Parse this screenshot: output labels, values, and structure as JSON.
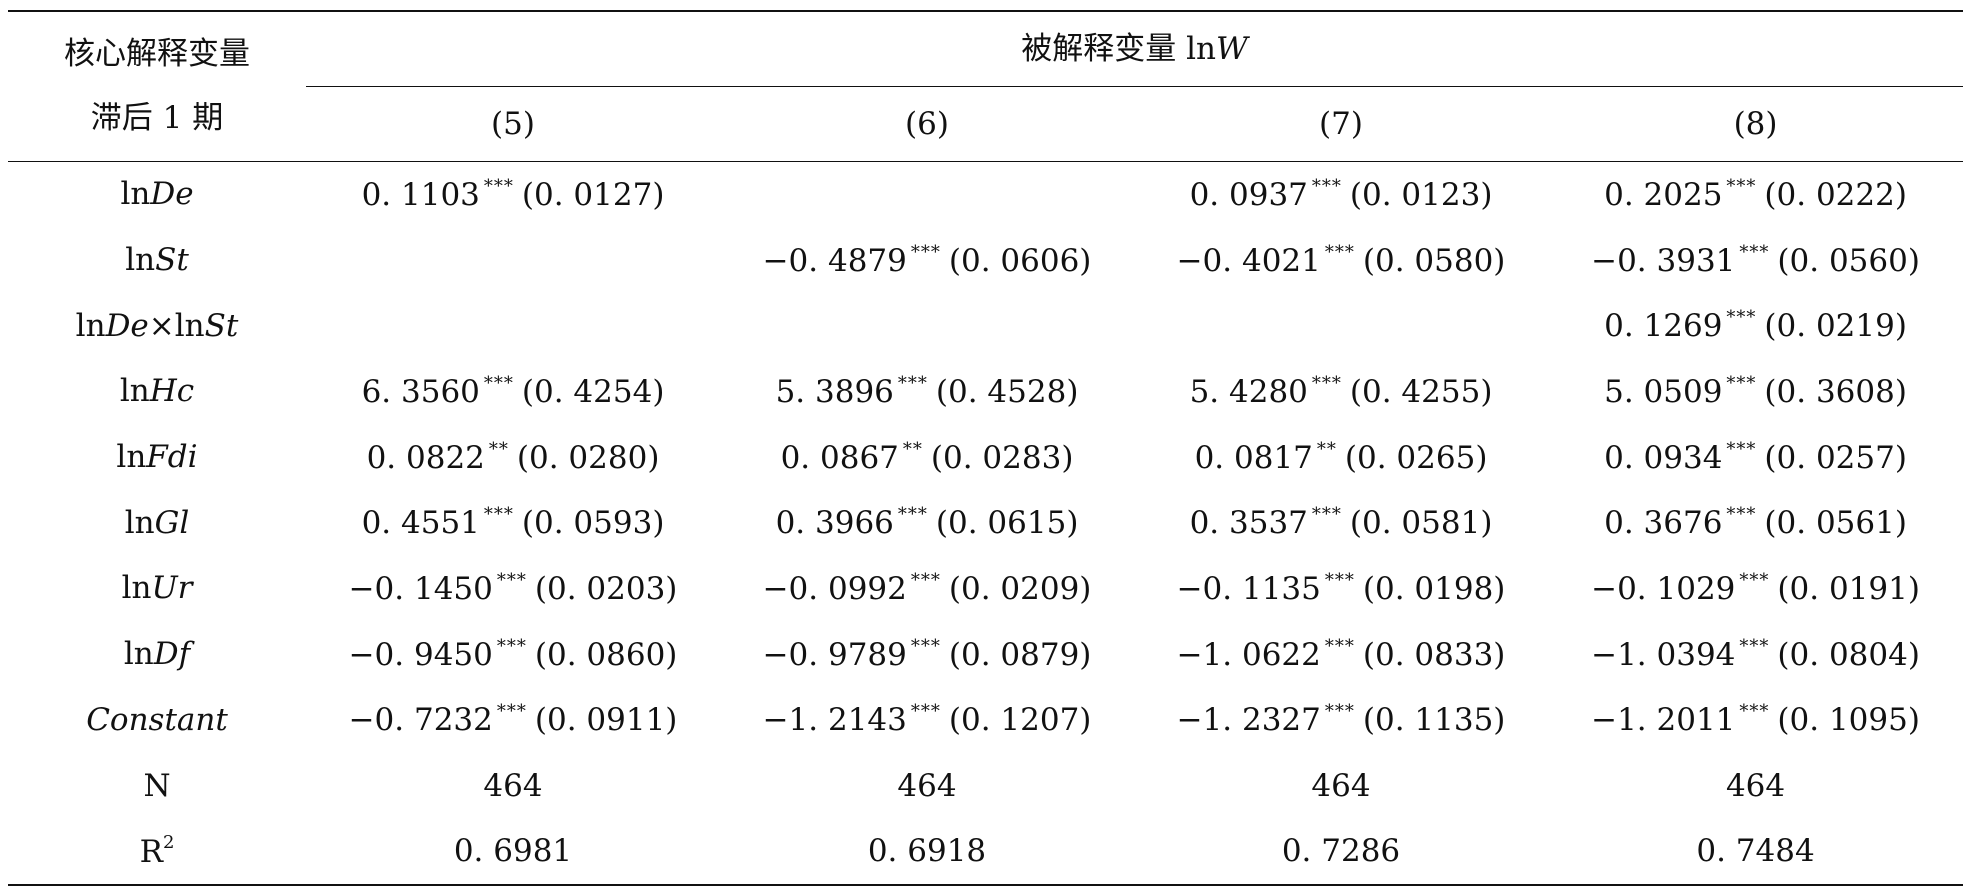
{
  "header": {
    "row_label_line1": "核心解释变量",
    "row_label_line2": "滞后 1 期",
    "dep_var_prefix": "被解释变量 ln",
    "dep_var_italic": "W",
    "columns": [
      "(5)",
      "(6)",
      "(7)",
      "(8)"
    ]
  },
  "rows": [
    {
      "label_prefix": "ln",
      "label_italic": "De",
      "label_mid": "",
      "label_italic2": "",
      "cells": [
        {
          "coef": "0. 1103",
          "sig": "***",
          "se": "(0. 0127)"
        },
        {
          "coef": "",
          "sig": "",
          "se": ""
        },
        {
          "coef": "0. 0937",
          "sig": "***",
          "se": "(0. 0123)"
        },
        {
          "coef": "0. 2025",
          "sig": "***",
          "se": "(0. 0222)"
        }
      ]
    },
    {
      "label_prefix": "ln",
      "label_italic": "St",
      "label_mid": "",
      "label_italic2": "",
      "cells": [
        {
          "coef": "",
          "sig": "",
          "se": ""
        },
        {
          "coef": "−0. 4879",
          "sig": "***",
          "se": "(0. 0606)"
        },
        {
          "coef": "−0. 4021",
          "sig": "***",
          "se": "(0. 0580)"
        },
        {
          "coef": "−0. 3931",
          "sig": "***",
          "se": "(0. 0560)"
        }
      ]
    },
    {
      "label_prefix": "ln",
      "label_italic": "De",
      "label_mid": "×ln",
      "label_italic2": "St",
      "cells": [
        {
          "coef": "",
          "sig": "",
          "se": ""
        },
        {
          "coef": "",
          "sig": "",
          "se": ""
        },
        {
          "coef": "",
          "sig": "",
          "se": ""
        },
        {
          "coef": "0. 1269",
          "sig": "***",
          "se": "(0. 0219)"
        }
      ]
    },
    {
      "label_prefix": "ln",
      "label_italic": "Hc",
      "label_mid": "",
      "label_italic2": "",
      "cells": [
        {
          "coef": "6. 3560",
          "sig": "***",
          "se": "(0. 4254)"
        },
        {
          "coef": "5. 3896",
          "sig": "***",
          "se": "(0. 4528)"
        },
        {
          "coef": "5. 4280",
          "sig": "***",
          "se": "(0. 4255)"
        },
        {
          "coef": "5. 0509",
          "sig": "***",
          "se": "(0. 3608)"
        }
      ]
    },
    {
      "label_prefix": "ln",
      "label_italic": "Fdi",
      "label_mid": "",
      "label_italic2": "",
      "cells": [
        {
          "coef": "0. 0822",
          "sig": "**",
          "se": "(0. 0280)"
        },
        {
          "coef": "0. 0867",
          "sig": "**",
          "se": "(0. 0283)"
        },
        {
          "coef": "0. 0817",
          "sig": "**",
          "se": "(0. 0265)"
        },
        {
          "coef": "0. 0934",
          "sig": "***",
          "se": "(0. 0257)"
        }
      ]
    },
    {
      "label_prefix": "ln",
      "label_italic": "Gl",
      "label_mid": "",
      "label_italic2": "",
      "cells": [
        {
          "coef": "0. 4551",
          "sig": "***",
          "se": "(0. 0593)"
        },
        {
          "coef": "0. 3966",
          "sig": "***",
          "se": "(0. 0615)"
        },
        {
          "coef": "0. 3537",
          "sig": "***",
          "se": "(0. 0581)"
        },
        {
          "coef": "0. 3676",
          "sig": "***",
          "se": "(0. 0561)"
        }
      ]
    },
    {
      "label_prefix": "ln",
      "label_italic": "Ur",
      "label_mid": "",
      "label_italic2": "",
      "cells": [
        {
          "coef": "−0. 1450",
          "sig": "***",
          "se": "(0. 0203)"
        },
        {
          "coef": "−0. 0992",
          "sig": "***",
          "se": "(0. 0209)"
        },
        {
          "coef": "−0. 1135",
          "sig": "***",
          "se": "(0. 0198)"
        },
        {
          "coef": "−0. 1029",
          "sig": "***",
          "se": "(0. 0191)"
        }
      ]
    },
    {
      "label_prefix": "ln",
      "label_italic": "Df",
      "label_mid": "",
      "label_italic2": "",
      "cells": [
        {
          "coef": "−0. 9450",
          "sig": "***",
          "se": "(0. 0860)"
        },
        {
          "coef": "−0. 9789",
          "sig": "***",
          "se": "(0. 0879)"
        },
        {
          "coef": "−1. 0622",
          "sig": "***",
          "se": "(0. 0833)"
        },
        {
          "coef": "−1. 0394",
          "sig": "***",
          "se": "(0. 0804)"
        }
      ]
    },
    {
      "label_prefix": "",
      "label_italic": "Constant",
      "label_mid": "",
      "label_italic2": "",
      "cells": [
        {
          "coef": "−0. 7232",
          "sig": "***",
          "se": "(0. 0911)"
        },
        {
          "coef": "−1. 2143",
          "sig": "***",
          "se": "(0. 1207)"
        },
        {
          "coef": "−1. 2327",
          "sig": "***",
          "se": "(0. 1135)"
        },
        {
          "coef": "−1. 2011",
          "sig": "***",
          "se": "(0. 1095)"
        }
      ]
    },
    {
      "label_prefix": "N",
      "label_italic": "",
      "label_mid": "",
      "label_italic2": "",
      "cells": [
        {
          "coef": "464",
          "sig": "",
          "se": ""
        },
        {
          "coef": "464",
          "sig": "",
          "se": ""
        },
        {
          "coef": "464",
          "sig": "",
          "se": ""
        },
        {
          "coef": "464",
          "sig": "",
          "se": ""
        }
      ]
    }
  ],
  "r2_row": {
    "label": "R",
    "label_sup": "2",
    "values": [
      "0. 6981",
      "0. 6918",
      "0. 7286",
      "0. 7484"
    ]
  }
}
